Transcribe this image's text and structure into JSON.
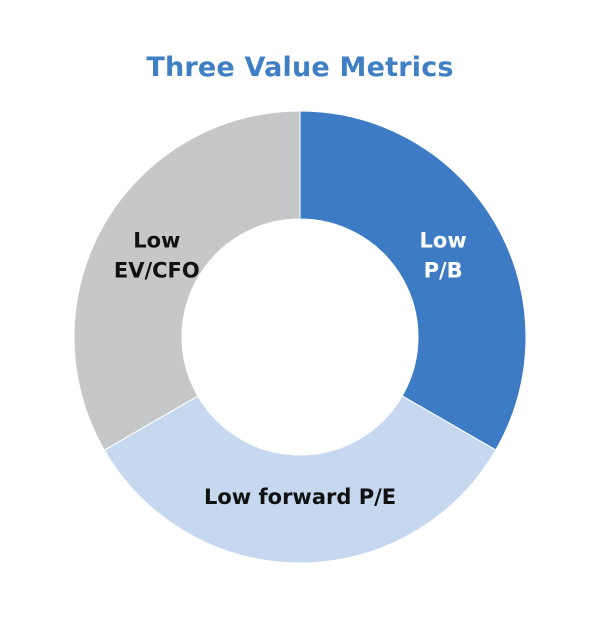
{
  "chart_data": {
    "type": "pie",
    "title": "Three Value Metrics",
    "slices": [
      {
        "label": [
          "Low",
          "P/B"
        ],
        "value": 33.33,
        "color": "#3d7bc4",
        "text_color": "#ffffff"
      },
      {
        "label": [
          "Low forward P/E"
        ],
        "value": 33.33,
        "color": "#c5d8f0",
        "text_color": "#111111"
      },
      {
        "label": [
          "Low",
          "EV/CFO"
        ],
        "value": 33.34,
        "color": "#c6c7c8",
        "text_color": "#111111"
      }
    ]
  }
}
